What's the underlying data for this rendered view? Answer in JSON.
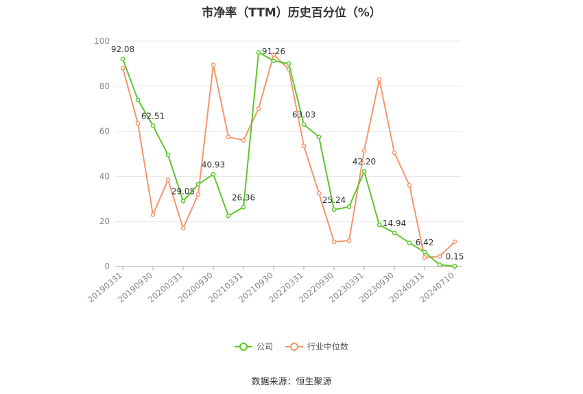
{
  "chart_data": {
    "type": "line",
    "title": "市净率（TTM）历史百分位（%）",
    "ylim": [
      0,
      100
    ],
    "yticks": [
      0,
      20,
      40,
      60,
      80,
      100
    ],
    "x": [
      "20190331",
      "20190630",
      "20190930",
      "20191231",
      "20200331",
      "20200630",
      "20200930",
      "20201231",
      "20210331",
      "20210630",
      "20210930",
      "20211231",
      "20220331",
      "20220630",
      "20220930",
      "20221231",
      "20230331",
      "20230630",
      "20230930",
      "20231231",
      "20240331",
      "20240630",
      "20240710"
    ],
    "xtick_labels": [
      "20190331",
      "20190930",
      "20200331",
      "20200930",
      "20210331",
      "20210930",
      "20220331",
      "20220930",
      "20230331",
      "20230930",
      "20240331",
      "20240710"
    ],
    "grid": true,
    "legend_position": "bottom",
    "series": [
      {
        "name": "公司",
        "color": "#5cc72a",
        "values": [
          92.08,
          74,
          62.51,
          49.5,
          29.05,
          36.5,
          40.93,
          22.5,
          26.36,
          95,
          91.26,
          90,
          63.03,
          57.5,
          25.24,
          26.5,
          42.2,
          18.5,
          14.94,
          10.5,
          6.42,
          0.8,
          0.15
        ]
      },
      {
        "name": "行业中位数",
        "color": "#f5956a",
        "values": [
          88,
          63.5,
          23,
          38.5,
          17,
          32,
          89.5,
          57.5,
          56,
          70,
          94,
          87.5,
          53.5,
          32.5,
          11,
          11.5,
          51.5,
          83,
          50.5,
          36,
          4,
          4.5,
          11
        ]
      }
    ],
    "annotations": [
      {
        "index": 0,
        "text": "92.08"
      },
      {
        "index": 2,
        "text": "62.51"
      },
      {
        "index": 4,
        "text": "29.05"
      },
      {
        "index": 6,
        "text": "40.93"
      },
      {
        "index": 8,
        "text": "26.36"
      },
      {
        "index": 10,
        "text": "91.26"
      },
      {
        "index": 12,
        "text": "63.03"
      },
      {
        "index": 14,
        "text": "25.24"
      },
      {
        "index": 16,
        "text": "42.20"
      },
      {
        "index": 18,
        "text": "14.94"
      },
      {
        "index": 20,
        "text": "6.42"
      },
      {
        "index": 22,
        "text": "0.15"
      }
    ]
  },
  "source": "数据来源：恒生聚源"
}
